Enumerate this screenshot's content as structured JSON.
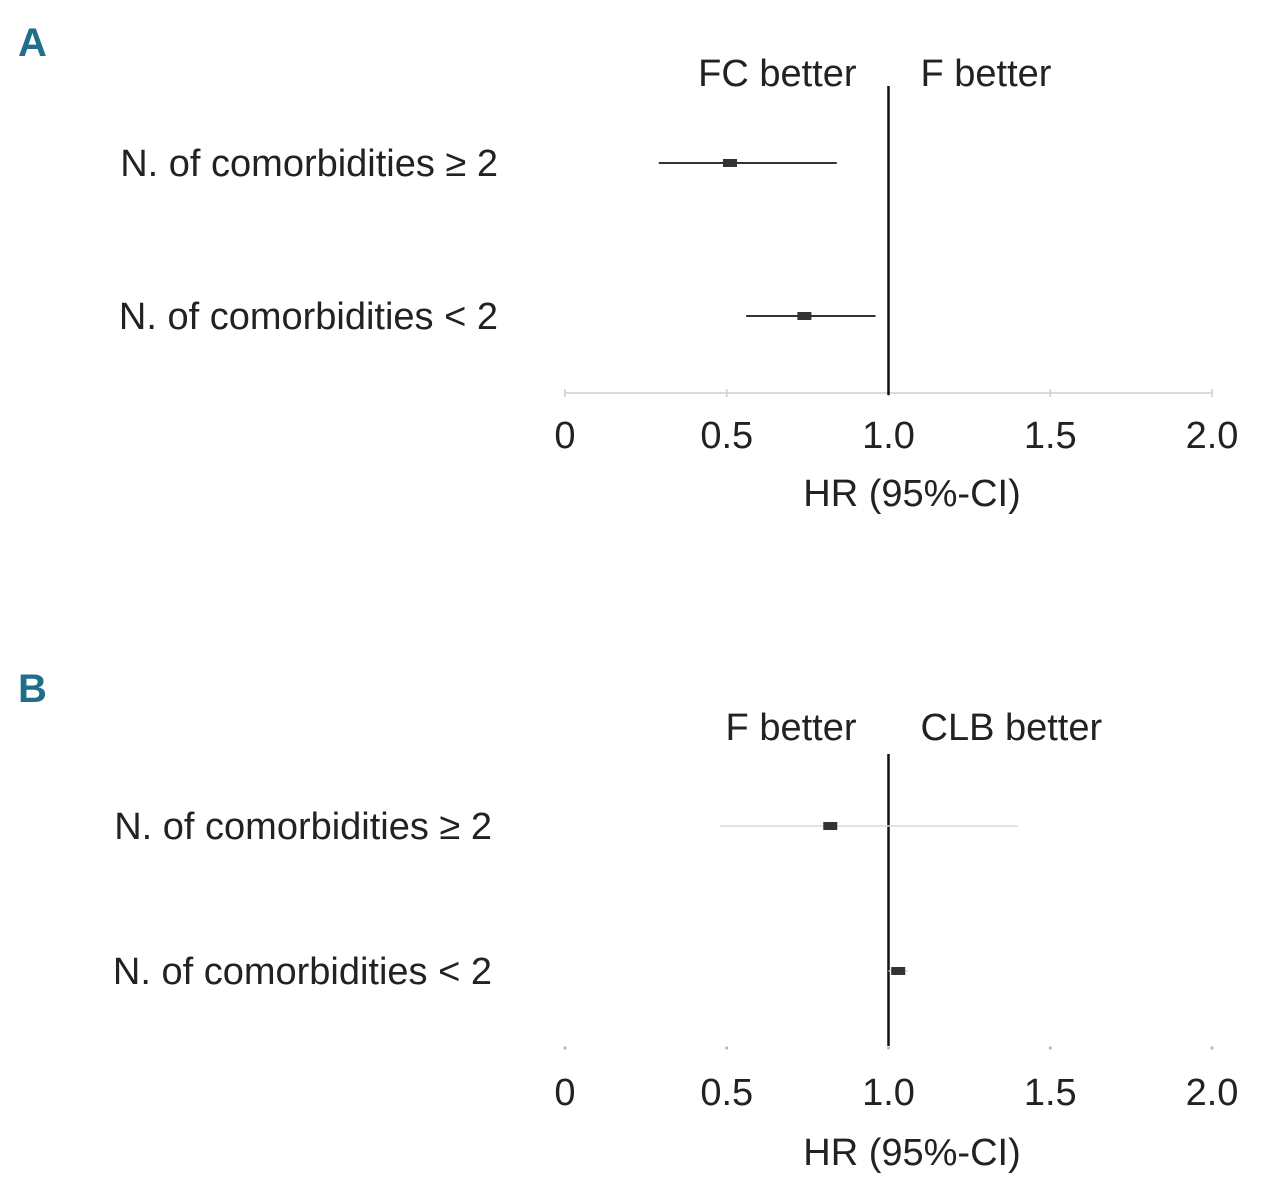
{
  "chart_data": [
    {
      "type": "forest",
      "panel": "A",
      "direction_labels": {
        "left": "FC better",
        "right": "F better"
      },
      "xlabel": "HR (95%-CI)",
      "xlim": [
        0,
        2.0
      ],
      "ticks": [
        {
          "value": 0,
          "label": "0"
        },
        {
          "value": 0.5,
          "label": "0.5"
        },
        {
          "value": 1.0,
          "label": "1.0"
        },
        {
          "value": 1.5,
          "label": "1.5"
        },
        {
          "value": 2.0,
          "label": "2.0"
        }
      ],
      "reference_line": 1.0,
      "rows": [
        {
          "label": "N. of comorbidities ≥ 2",
          "hr": 0.51,
          "ci_low": 0.29,
          "ci_high": 0.84
        },
        {
          "label": "N. of comorbidities < 2",
          "hr": 0.74,
          "ci_low": 0.56,
          "ci_high": 0.96
        }
      ]
    },
    {
      "type": "forest",
      "panel": "B",
      "direction_labels": {
        "left": "F better",
        "right": "CLB better"
      },
      "xlabel": "HR (95%-CI)",
      "xlim": [
        0,
        2.0
      ],
      "ticks": [
        {
          "value": 0,
          "label": "0"
        },
        {
          "value": 0.5,
          "label": "0.5"
        },
        {
          "value": 1.0,
          "label": "1.0"
        },
        {
          "value": 1.5,
          "label": "1.5"
        },
        {
          "value": 2.0,
          "label": "2.0"
        }
      ],
      "reference_line": 1.0,
      "rows": [
        {
          "label": "N. of comorbidities ≥ 2",
          "hr": 0.82,
          "ci_low": 0.48,
          "ci_high": 1.4
        },
        {
          "label": "N. of comorbidities < 2",
          "hr": 1.03,
          "ci_low": 1.0,
          "ci_high": 1.06
        }
      ]
    }
  ]
}
